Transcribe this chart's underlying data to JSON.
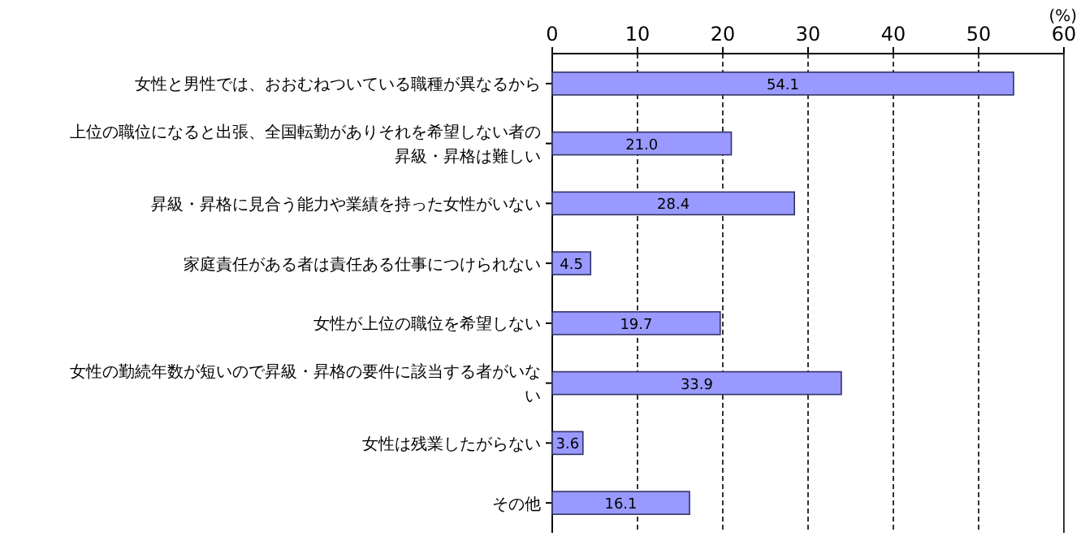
{
  "chart_data": {
    "type": "bar",
    "orientation": "horizontal",
    "xlabel": "(%)",
    "categories": [
      "女性と男性では、おおむねついている職種が異なるから",
      "上位の職位になると出張、全国転勤がありそれを希望しない者の昇級・昇格は難しい",
      "昇級・昇格に見合う能力や業績を持った女性がいない",
      "家庭責任がある者は責任ある仕事につけられない",
      "女性が上位の職位を希望しない",
      "女性の勤続年数が短いので昇級・昇格の要件に該当する者がいない",
      "女性は残業したがらない",
      "その他"
    ],
    "values": [
      54.1,
      21.0,
      28.4,
      4.5,
      19.7,
      33.9,
      3.6,
      16.1
    ],
    "value_labels": [
      "54.1",
      "21.0",
      "28.4",
      "4.5",
      "19.7",
      "33.9",
      "3.6",
      "16.1"
    ],
    "color": "#9999ff",
    "xlim": [
      0,
      60
    ],
    "xticks": [
      0,
      10,
      20,
      30,
      40,
      50,
      60
    ],
    "grid": "x"
  }
}
